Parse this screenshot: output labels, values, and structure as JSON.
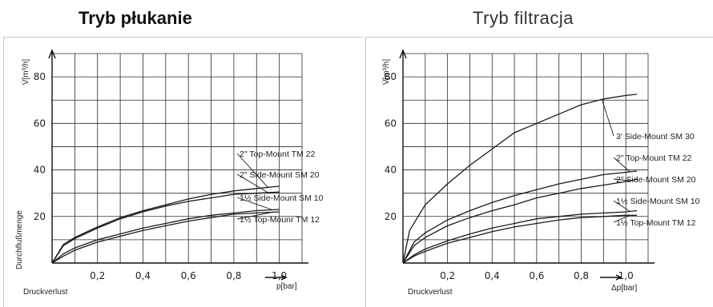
{
  "titles": {
    "left": "Tryb płukanie",
    "right": "Tryb filtracja"
  },
  "chart_data": [
    {
      "type": "line",
      "title": "Tryb płukanie",
      "xlabel": "Druckverlust",
      "ylabel": "Durchflußmenge",
      "x_axis_label": "p[bar]",
      "y_axis_label": "V̇[m³/h]",
      "xlim": [
        0,
        1.1
      ],
      "ylim": [
        0,
        90
      ],
      "x_ticks": [
        "0,2",
        "0,4",
        "0,6",
        "0,8",
        "1,0"
      ],
      "y_ticks": [
        "20",
        "40",
        "60",
        "80"
      ],
      "grid": true,
      "series": [
        {
          "name": "2\" Top-Mount TM 22",
          "x": [
            0,
            0.05,
            0.1,
            0.2,
            0.3,
            0.4,
            0.5,
            0.6,
            0.7,
            0.8,
            0.9,
            1.0
          ],
          "y": [
            0,
            8,
            11,
            15.5,
            19.5,
            22.5,
            25,
            27.5,
            29.5,
            31,
            32,
            33
          ]
        },
        {
          "name": "2\" Side-Mount SM 20",
          "x": [
            0,
            0.05,
            0.1,
            0.2,
            0.3,
            0.4,
            0.5,
            0.6,
            0.7,
            0.8,
            0.9,
            1.0
          ],
          "y": [
            0,
            7.5,
            10.5,
            15,
            19,
            22,
            24.5,
            26.5,
            28,
            29.5,
            30,
            30.5
          ]
        },
        {
          "name": "1½ Side-Mount SM 10",
          "x": [
            0,
            0.05,
            0.1,
            0.2,
            0.3,
            0.4,
            0.5,
            0.6,
            0.7,
            0.8,
            0.9,
            1.0
          ],
          "y": [
            0,
            4,
            6.5,
            10,
            12.5,
            15,
            17,
            19,
            20.5,
            21.5,
            22.5,
            23
          ]
        },
        {
          "name": "1½ Top-Mounr TM 12",
          "x": [
            0,
            0.05,
            0.1,
            0.2,
            0.3,
            0.4,
            0.5,
            0.6,
            0.7,
            0.8,
            0.9,
            1.0
          ],
          "y": [
            0,
            3,
            5.5,
            9,
            11.5,
            14,
            16,
            18,
            19.5,
            21,
            21.5,
            22
          ]
        }
      ],
      "legend": [
        "2\" Top-Mount TM 22",
        "2\" Side-Mount SM 20",
        "1½ Side-Mount SM 10",
        "1½ Top-Mounr TM 12"
      ]
    },
    {
      "type": "line",
      "title": "Tryb filtracja",
      "xlabel": "Druckverlust",
      "ylabel": "",
      "x_axis_label": "Δp[bar]",
      "y_axis_label": "V̇[m³/h]",
      "xlim": [
        0,
        1.1
      ],
      "ylim": [
        0,
        90
      ],
      "x_ticks": [
        "0,2",
        "0,4",
        "0,6",
        "0,8",
        "1,0"
      ],
      "y_ticks": [
        "20",
        "40",
        "60",
        "80"
      ],
      "grid": true,
      "series": [
        {
          "name": "3\" Side-Mount SM 30",
          "x": [
            0,
            0.03,
            0.1,
            0.2,
            0.3,
            0.4,
            0.5,
            0.6,
            0.7,
            0.8,
            0.9,
            1.0,
            1.05
          ],
          "y": [
            0,
            14,
            25,
            34,
            42,
            49,
            56,
            60,
            64,
            68,
            70.5,
            72,
            72.5
          ]
        },
        {
          "name": "2\" Top-Mount TM 22",
          "x": [
            0,
            0.05,
            0.1,
            0.2,
            0.3,
            0.4,
            0.5,
            0.6,
            0.7,
            0.8,
            0.9,
            1.0,
            1.05
          ],
          "y": [
            0,
            9,
            13,
            18.5,
            22.5,
            26,
            29,
            31.5,
            34,
            36,
            38,
            39,
            39.5
          ]
        },
        {
          "name": "2\" Side-Mount SM 20",
          "x": [
            0,
            0.05,
            0.1,
            0.2,
            0.3,
            0.4,
            0.5,
            0.6,
            0.7,
            0.8,
            0.9,
            1.0,
            1.05
          ],
          "y": [
            0,
            7.5,
            11,
            16,
            19.5,
            22.5,
            25,
            28,
            30,
            32,
            33.5,
            35,
            36
          ]
        },
        {
          "name": "1½ Side-Mount SM 10",
          "x": [
            0,
            0.05,
            0.1,
            0.2,
            0.3,
            0.4,
            0.5,
            0.6,
            0.7,
            0.8,
            0.9,
            1.0,
            1.05
          ],
          "y": [
            0,
            3.5,
            6,
            9.5,
            12.5,
            15,
            17,
            19,
            20,
            21,
            21.5,
            22,
            22.5
          ]
        },
        {
          "name": "1½ Top-Mount TM 12",
          "x": [
            0,
            0.05,
            0.1,
            0.2,
            0.3,
            0.4,
            0.5,
            0.6,
            0.7,
            0.8,
            0.9,
            1.0,
            1.05
          ],
          "y": [
            0,
            3,
            5,
            8.5,
            11,
            13.5,
            15.5,
            17,
            18.5,
            19.5,
            20,
            20.5,
            20.5
          ]
        }
      ],
      "legend": [
        "3' Side-Mount SM 30",
        "2\" Top-Mount TM 22",
        "2\" Side-Mount SM 20",
        "1½ Side-Mount SM 10",
        "1½ Top-Mount TM 12"
      ]
    }
  ]
}
